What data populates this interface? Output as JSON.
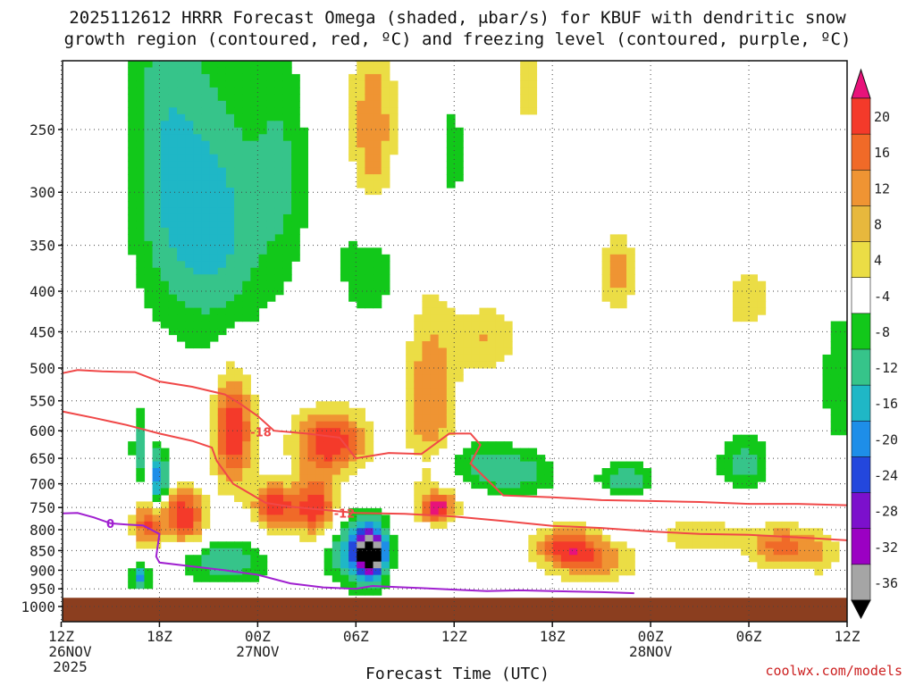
{
  "title": {
    "line1": "2025112612 HRRR Forecast Omega (shaded, μbar/s) for KBUF with dendritic snow",
    "line2": "growth region (contoured, red, ºC) and freezing level (contoured, purple, ºC)"
  },
  "credit": "coolwx.com/models",
  "chart_data": {
    "type": "heatmap",
    "xlabel": "Forecast Time (UTC)",
    "x_ticks": [
      {
        "label": "12Z",
        "sub": [
          "26NOV",
          "2025"
        ],
        "hour": 0
      },
      {
        "label": "18Z",
        "sub": [],
        "hour": 6
      },
      {
        "label": "00Z",
        "sub": [
          "27NOV"
        ],
        "hour": 12
      },
      {
        "label": "06Z",
        "sub": [],
        "hour": 18
      },
      {
        "label": "12Z",
        "sub": [],
        "hour": 24
      },
      {
        "label": "18Z",
        "sub": [],
        "hour": 30
      },
      {
        "label": "00Z",
        "sub": [
          "28NOV"
        ],
        "hour": 36
      },
      {
        "label": "06Z",
        "sub": [],
        "hour": 42
      },
      {
        "label": "12Z",
        "sub": [],
        "hour": 48
      }
    ],
    "y_ticks": [
      250,
      300,
      350,
      400,
      450,
      500,
      550,
      600,
      650,
      700,
      750,
      800,
      850,
      900,
      950,
      1000
    ],
    "y_range": [
      200,
      1000
    ],
    "x_range": [
      0,
      48
    ],
    "colorbar": {
      "labels": [
        "20",
        "16",
        "12",
        "8",
        "4",
        "-4",
        "-8",
        "-12",
        "-16",
        "-20",
        "-24",
        "-28",
        "-32",
        "-36"
      ],
      "colors": [
        "#e8137a",
        "#f43a2a",
        "#f06a28",
        "#ef9433",
        "#e7b83d",
        "#ebdd45",
        "#ffffff",
        "#12c81a",
        "#36c48a",
        "#1fb7c6",
        "#1e8ee8",
        "#2347dd",
        "#7c10cc",
        "#9b00c3",
        "#a5a5a5",
        "#000000"
      ]
    },
    "omega_blobs": [
      {
        "t": 6.2,
        "p": 260,
        "w": 2.4,
        "h": 300,
        "v": -9
      },
      {
        "t": 9.5,
        "p": 330,
        "w": 3.2,
        "h": 260,
        "v": -13
      },
      {
        "t": 13.5,
        "p": 280,
        "w": 1.6,
        "h": 200,
        "v": -7
      },
      {
        "t": 4.8,
        "p": 630,
        "w": 0.5,
        "h": 140,
        "v": -10
      },
      {
        "t": 6.0,
        "p": 690,
        "w": 0.4,
        "h": 120,
        "v": -22
      },
      {
        "t": 4.8,
        "p": 920,
        "w": 0.5,
        "h": 60,
        "v": -18
      },
      {
        "t": 10.0,
        "p": 880,
        "w": 2.5,
        "h": 110,
        "v": -12
      },
      {
        "t": 18.0,
        "p": 850,
        "w": 1.8,
        "h": 180,
        "v": -15
      },
      {
        "t": 18.9,
        "p": 860,
        "w": 0.9,
        "h": 120,
        "v": -36
      },
      {
        "t": 24.5,
        "p": 650,
        "w": 3.5,
        "h": 80,
        "v": -6
      },
      {
        "t": 27.5,
        "p": 680,
        "w": 2.8,
        "h": 90,
        "v": -10
      },
      {
        "t": 34.5,
        "p": 690,
        "w": 1.6,
        "h": 60,
        "v": -12
      },
      {
        "t": 41.7,
        "p": 660,
        "w": 1.6,
        "h": 110,
        "v": -10
      },
      {
        "t": 47.5,
        "p": 520,
        "w": 1.0,
        "h": 220,
        "v": -8
      },
      {
        "t": 24.0,
        "p": 270,
        "w": 0.6,
        "h": 120,
        "v": -6
      },
      {
        "t": 18.8,
        "p": 350,
        "w": 2.5,
        "h": 200,
        "v": -7
      },
      {
        "t": 5.3,
        "p": 790,
        "w": 0.9,
        "h": 100,
        "v": 16
      },
      {
        "t": 7.5,
        "p": 770,
        "w": 1.3,
        "h": 120,
        "v": 20
      },
      {
        "t": 10.5,
        "p": 600,
        "w": 1.2,
        "h": 200,
        "v": 20
      },
      {
        "t": 13.0,
        "p": 750,
        "w": 1.2,
        "h": 100,
        "v": 20
      },
      {
        "t": 15.5,
        "p": 750,
        "w": 1.3,
        "h": 130,
        "v": 20
      },
      {
        "t": 16.5,
        "p": 620,
        "w": 2.2,
        "h": 110,
        "v": 20
      },
      {
        "t": 19.0,
        "p": 260,
        "w": 1.5,
        "h": 150,
        "v": 14
      },
      {
        "t": 22.5,
        "p": 560,
        "w": 1.6,
        "h": 320,
        "v": 12
      },
      {
        "t": 23.0,
        "p": 750,
        "w": 1.0,
        "h": 60,
        "v": 20
      },
      {
        "t": 26.0,
        "p": 460,
        "w": 2.0,
        "h": 90,
        "v": 8
      },
      {
        "t": 31.0,
        "p": 840,
        "w": 2.0,
        "h": 90,
        "v": 16
      },
      {
        "t": 32.5,
        "p": 880,
        "w": 2.8,
        "h": 100,
        "v": 10
      },
      {
        "t": 34.0,
        "p": 380,
        "w": 1.0,
        "h": 90,
        "v": 10
      },
      {
        "t": 39.0,
        "p": 810,
        "w": 2.5,
        "h": 80,
        "v": 8
      },
      {
        "t": 42.0,
        "p": 410,
        "w": 1.4,
        "h": 70,
        "v": 8
      },
      {
        "t": 44.0,
        "p": 840,
        "w": 2.0,
        "h": 100,
        "v": 14
      },
      {
        "t": 46.5,
        "p": 860,
        "w": 1.3,
        "h": 120,
        "v": 6
      },
      {
        "t": 28.5,
        "p": 220,
        "w": 1.3,
        "h": 90,
        "v": 5
      }
    ],
    "dgz_lines": [
      {
        "label": "-18",
        "label_at": {
          "t": 12.2,
          "p": 602
        },
        "points": [
          [
            0,
            508
          ],
          [
            1,
            503
          ],
          [
            2.5,
            505
          ],
          [
            4.5,
            506
          ],
          [
            6,
            520
          ],
          [
            8,
            528
          ],
          [
            10,
            540
          ],
          [
            11,
            556
          ],
          [
            12,
            575
          ],
          [
            13,
            600
          ],
          [
            15,
            605
          ],
          [
            17,
            612
          ],
          [
            18,
            650
          ],
          [
            20,
            640
          ],
          [
            22,
            642
          ],
          [
            23.7,
            605
          ],
          [
            25,
            605
          ],
          [
            25.6,
            625
          ],
          [
            25,
            660
          ],
          [
            27,
            724
          ],
          [
            30,
            728
          ],
          [
            33,
            734
          ],
          [
            36,
            736
          ],
          [
            39,
            738
          ],
          [
            42,
            742
          ],
          [
            45,
            742
          ],
          [
            48,
            745
          ]
        ]
      },
      {
        "label": "-12",
        "label_at": {
          "t": 17.3,
          "p": 762
        },
        "points": [
          [
            0,
            567
          ],
          [
            2,
            578
          ],
          [
            4,
            590
          ],
          [
            6,
            605
          ],
          [
            8,
            618
          ],
          [
            9.2,
            630
          ],
          [
            9.5,
            655
          ],
          [
            10.5,
            700
          ],
          [
            12.5,
            740
          ],
          [
            14,
            748
          ],
          [
            16,
            755
          ],
          [
            18,
            762
          ],
          [
            21,
            764
          ],
          [
            24,
            770
          ],
          [
            27,
            780
          ],
          [
            30,
            791
          ],
          [
            33,
            796
          ],
          [
            36,
            804
          ],
          [
            39,
            810
          ],
          [
            42,
            812
          ],
          [
            45,
            818
          ],
          [
            48,
            825
          ]
        ]
      }
    ],
    "freezing_line": {
      "label": "0",
      "label_at": {
        "t": 3.0,
        "p": 785
      },
      "points": [
        [
          0,
          763
        ],
        [
          1,
          762
        ],
        [
          2,
          772
        ],
        [
          3,
          785
        ],
        [
          4,
          788
        ],
        [
          5,
          790
        ],
        [
          6,
          810
        ],
        [
          5.8,
          865
        ],
        [
          6,
          880
        ],
        [
          8,
          890
        ],
        [
          10,
          900
        ],
        [
          12,
          912
        ],
        [
          14,
          935
        ],
        [
          16,
          946
        ],
        [
          18,
          950
        ],
        [
          19,
          942
        ],
        [
          20.5,
          945
        ],
        [
          22,
          948
        ],
        [
          24,
          952
        ],
        [
          26,
          956
        ],
        [
          28,
          954
        ],
        [
          30,
          956
        ],
        [
          33,
          959
        ],
        [
          35,
          962
        ]
      ]
    }
  }
}
